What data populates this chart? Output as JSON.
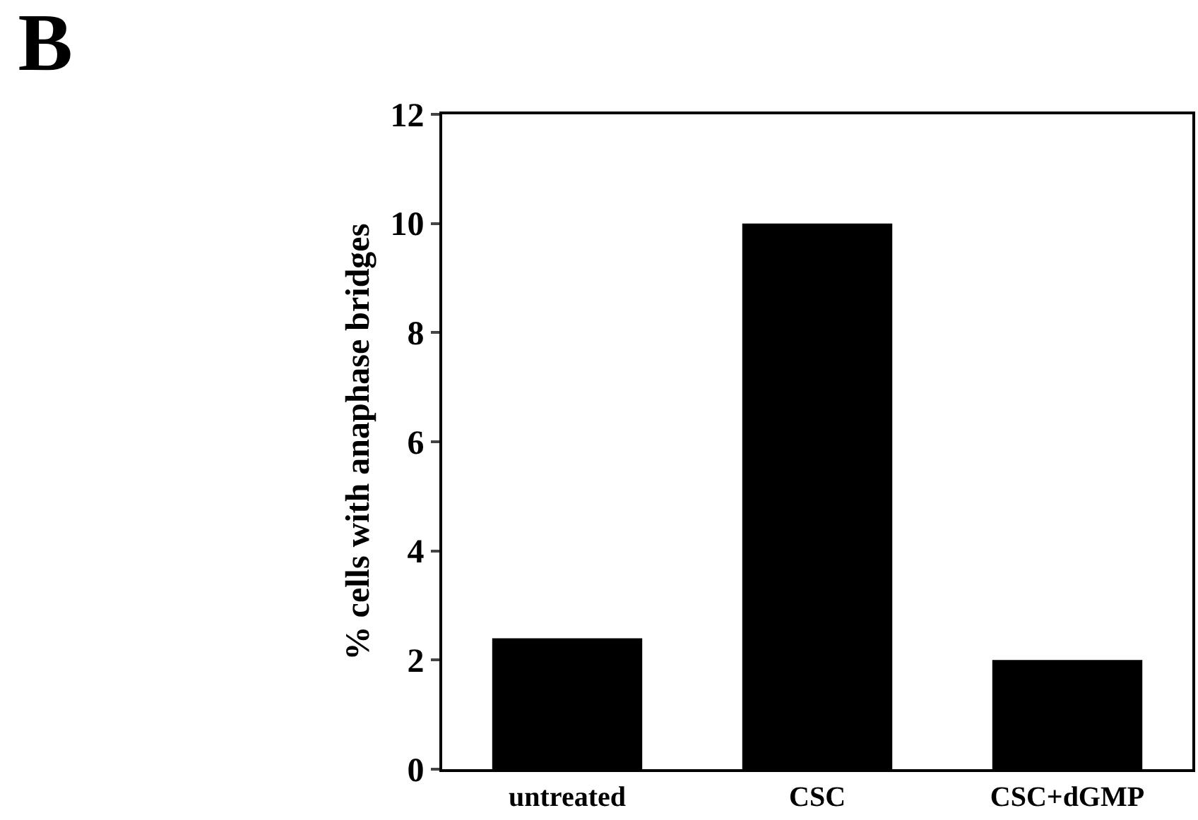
{
  "chart_data": {
    "type": "bar",
    "title": "B",
    "ylabel": "% cells with anaphase bridges",
    "categories": [
      "untreated",
      "CSC",
      "CSC+dGMP"
    ],
    "values": [
      2.4,
      10,
      2
    ],
    "color": "#000000",
    "ylim": [
      0,
      12
    ],
    "yticks": [
      0,
      2,
      4,
      6,
      8,
      10,
      12
    ]
  }
}
